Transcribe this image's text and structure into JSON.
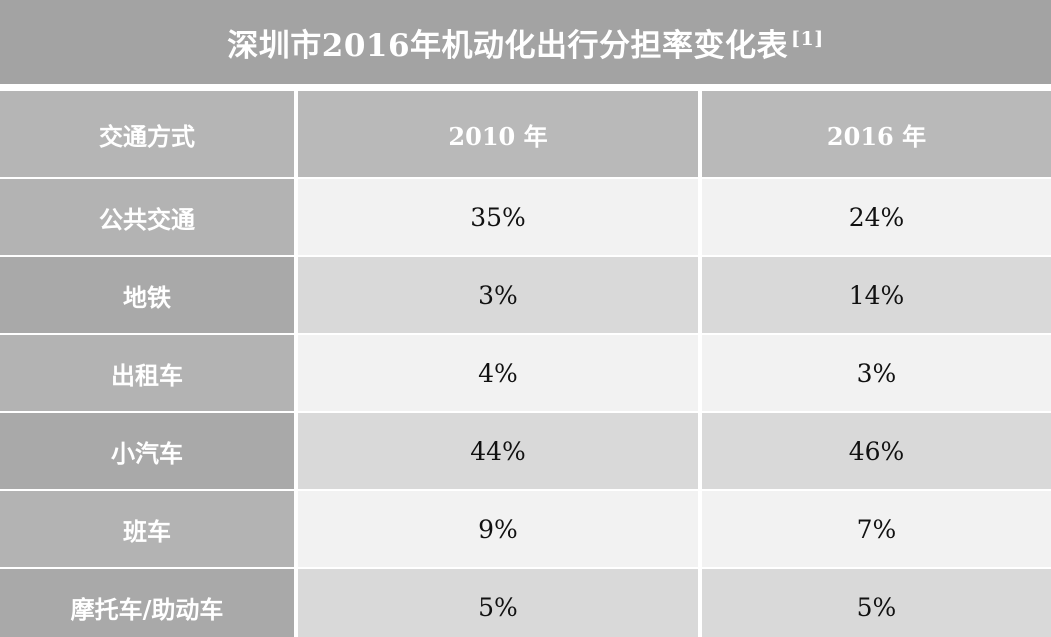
{
  "title": {
    "text": "深圳市2016年机动化出行分担率变化表",
    "footnote_ref": "[1]"
  },
  "table": {
    "columns": [
      "交通方式",
      "2010 年",
      "2016 年"
    ],
    "rows": [
      {
        "mode": "公共交通",
        "y2010": "35%",
        "y2016": "24%"
      },
      {
        "mode": "地铁",
        "y2010": "3%",
        "y2016": "14%"
      },
      {
        "mode": "出租车",
        "y2010": "4%",
        "y2016": "3%"
      },
      {
        "mode": "小汽车",
        "y2010": "44%",
        "y2016": "46%"
      },
      {
        "mode": "班车",
        "y2010": "9%",
        "y2016": "7%"
      },
      {
        "mode": "摩托车/助动车",
        "y2010": "5%",
        "y2016": "5%"
      }
    ]
  },
  "colors": {
    "title_bg": "#a3a3a3",
    "header_bg": "#b9b9b9",
    "label_bg": "#b3b3b3",
    "row_light": "#f2f2f2",
    "row_dark": "#d9d9d9"
  }
}
